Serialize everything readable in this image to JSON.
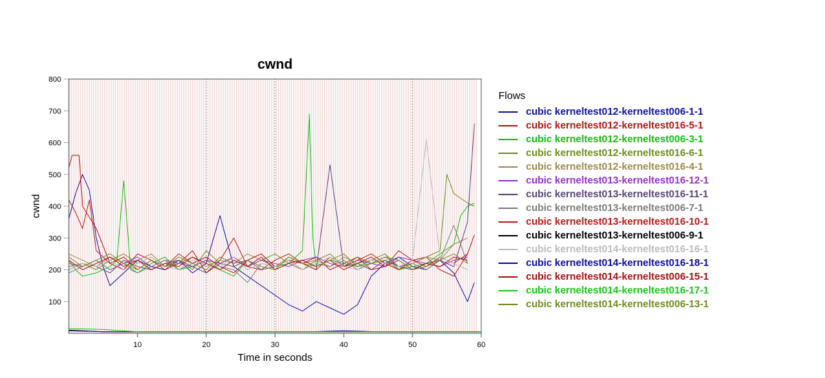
{
  "chart_data": {
    "type": "line",
    "title": "cwnd",
    "xlabel": "Time in seconds",
    "ylabel": "cwnd",
    "xlim": [
      0,
      60
    ],
    "ylim": [
      0,
      800
    ],
    "x_ticks": [
      10,
      20,
      30,
      40,
      50,
      60
    ],
    "y_ticks": [
      100,
      200,
      300,
      400,
      500,
      600,
      700,
      800
    ],
    "grid": "vertical dotted at 20, 30, 50; y tick marks",
    "legend_title": "Flows",
    "legend_position": "right",
    "background_band": {
      "color": "#eac8c8",
      "description": "dense vertical markers throughout the plot"
    },
    "series": [
      {
        "name": "cubic kerneltest012-kerneltest006-1-1",
        "color": "#1010a8",
        "x": [
          0,
          1,
          2,
          3,
          4,
          5,
          6,
          8,
          10,
          12,
          14,
          16,
          18,
          20,
          22,
          24,
          26,
          28,
          30,
          32,
          34,
          36,
          38,
          40,
          42,
          44,
          46,
          48,
          50,
          52,
          54,
          56,
          58,
          59
        ],
        "y": [
          360,
          440,
          500,
          450,
          300,
          210,
          150,
          190,
          230,
          210,
          200,
          230,
          190,
          220,
          370,
          210,
          180,
          150,
          120,
          90,
          70,
          100,
          80,
          60,
          90,
          180,
          220,
          240,
          210,
          200,
          230,
          190,
          100,
          160
        ]
      },
      {
        "name": "cubic kerneltest012-kerneltest016-5-1",
        "color": "#b81414",
        "x": [
          0,
          0.5,
          1.5,
          2,
          4,
          6,
          8,
          10,
          12,
          14,
          16,
          18,
          20,
          22,
          24,
          26,
          28,
          30,
          32,
          34,
          36,
          38,
          40,
          42,
          44,
          46,
          48,
          50,
          52,
          54,
          56,
          58,
          59
        ],
        "y": [
          520,
          560,
          560,
          400,
          330,
          220,
          200,
          250,
          230,
          200,
          220,
          260,
          190,
          230,
          300,
          210,
          200,
          230,
          250,
          220,
          240,
          200,
          220,
          240,
          200,
          210,
          260,
          230,
          240,
          200,
          180,
          250,
          310
        ]
      },
      {
        "name": "cubic kerneltest012-kerneltest006-3-1",
        "color": "#10c010",
        "x": [
          0,
          1,
          2,
          4,
          6,
          7,
          8,
          9,
          10,
          12,
          14,
          16,
          18,
          20,
          22,
          24,
          26,
          28,
          30,
          32,
          34,
          35,
          35.5,
          36,
          38,
          40,
          42,
          44,
          46,
          48,
          50,
          52,
          54,
          56,
          57,
          58,
          59
        ],
        "y": [
          230,
          200,
          180,
          190,
          210,
          230,
          480,
          200,
          190,
          220,
          240,
          200,
          210,
          230,
          200,
          180,
          230,
          250,
          210,
          220,
          260,
          690,
          300,
          210,
          230,
          220,
          210,
          230,
          250,
          200,
          210,
          220,
          250,
          280,
          370,
          400,
          410
        ]
      },
      {
        "name": "cubic kerneltest012-kerneltest016-6-1",
        "color": "#6e8c1c",
        "x": [
          0,
          2,
          4,
          6,
          8,
          10,
          12,
          14,
          16,
          18,
          20,
          22,
          24,
          26,
          28,
          30,
          32,
          34,
          36,
          38,
          40,
          42,
          44,
          46,
          48,
          50,
          52,
          54,
          55,
          56,
          58,
          59
        ],
        "y": [
          210,
          220,
          200,
          230,
          250,
          220,
          240,
          210,
          230,
          200,
          260,
          220,
          240,
          210,
          230,
          250,
          220,
          200,
          230,
          250,
          210,
          240,
          220,
          230,
          200,
          220,
          240,
          260,
          500,
          440,
          410,
          400
        ]
      },
      {
        "name": "cubic kerneltest012-kerneltest016-4-1",
        "color": "#9c8a52",
        "x": [
          0,
          2,
          4,
          6,
          8,
          10,
          12,
          14,
          16,
          18,
          20,
          22,
          24,
          26,
          28,
          30,
          32,
          34,
          36,
          38,
          40,
          42,
          44,
          46,
          48,
          50,
          52,
          54,
          56,
          58
        ],
        "y": [
          250,
          230,
          210,
          240,
          220,
          230,
          250,
          210,
          220,
          240,
          210,
          230,
          220,
          250,
          230,
          210,
          240,
          220,
          230,
          210,
          240,
          220,
          230,
          250,
          210,
          220,
          240,
          230,
          280,
          300
        ]
      },
      {
        "name": "cubic kerneltest013-kerneltest016-12-1",
        "color": "#9430c8",
        "x": [
          0,
          2,
          4,
          6,
          8,
          10,
          12,
          14,
          16,
          18,
          20,
          22,
          24,
          26,
          28,
          30,
          32,
          34,
          36,
          38,
          40,
          42,
          44,
          46,
          48,
          50,
          52,
          54,
          56,
          58
        ],
        "y": [
          220,
          210,
          230,
          200,
          220,
          240,
          210,
          230,
          220,
          210,
          230,
          220,
          240,
          210,
          230,
          220,
          210,
          230,
          240,
          220,
          210,
          230,
          220,
          210,
          240,
          230,
          220,
          210,
          230,
          240
        ]
      },
      {
        "name": "cubic kerneltest013-kerneltest016-11-1",
        "color": "#5c4478",
        "x": [
          0,
          2,
          4,
          6,
          8,
          10,
          12,
          14,
          16,
          18,
          20,
          22,
          24,
          26,
          28,
          30,
          32,
          34,
          36,
          38,
          40,
          42,
          44,
          46,
          48,
          50,
          52,
          54,
          56,
          58,
          59
        ],
        "y": [
          200,
          220,
          210,
          190,
          230,
          210,
          200,
          220,
          230,
          210,
          190,
          220,
          210,
          230,
          200,
          210,
          230,
          220,
          200,
          530,
          210,
          220,
          200,
          230,
          210,
          200,
          220,
          230,
          210,
          350,
          660
        ]
      },
      {
        "name": "cubic kerneltest013-kerneltest006-7-1",
        "color": "#7c7c7c",
        "x": [
          0,
          2,
          4,
          6,
          8,
          10,
          12,
          14,
          16,
          18,
          20,
          22,
          24,
          26,
          28,
          30,
          32,
          34,
          36,
          38,
          40,
          42,
          44,
          46,
          48,
          50,
          52,
          54,
          56,
          58
        ],
        "y": [
          190,
          210,
          230,
          200,
          220,
          190,
          210,
          230,
          200,
          220,
          240,
          210,
          200,
          160,
          220,
          210,
          230,
          200,
          220,
          210,
          230,
          200,
          220,
          240,
          210,
          220,
          200,
          230,
          340,
          220
        ]
      },
      {
        "name": "cubic kerneltest013-kerneltest016-10-1",
        "color": "#c01818",
        "x": [
          0,
          1,
          2,
          3,
          4,
          6,
          8,
          10,
          12,
          14,
          16,
          18,
          20,
          22,
          24,
          26,
          28,
          30,
          32,
          34,
          36,
          38,
          40,
          42,
          44,
          46,
          48,
          50,
          52,
          54,
          56,
          58
        ],
        "y": [
          420,
          380,
          330,
          420,
          260,
          220,
          240,
          200,
          230,
          210,
          250,
          220,
          240,
          210,
          190,
          230,
          250,
          210,
          230,
          220,
          200,
          240,
          210,
          230,
          250,
          220,
          200,
          230,
          210,
          240,
          220,
          250
        ]
      },
      {
        "name": "cubic kerneltest013-kerneltest006-9-1",
        "color": "#000000",
        "x": [
          0,
          5,
          10,
          15,
          20,
          25,
          30,
          35,
          40,
          45,
          50,
          55,
          60
        ],
        "y": [
          10,
          5,
          5,
          5,
          5,
          5,
          5,
          5,
          5,
          5,
          5,
          5,
          5
        ]
      },
      {
        "name": "cubic kerneltest014-kerneltest016-16-1",
        "color": "#bcbcbc",
        "x": [
          0,
          2,
          4,
          6,
          8,
          10,
          12,
          14,
          16,
          18,
          20,
          22,
          24,
          26,
          28,
          30,
          32,
          34,
          36,
          38,
          40,
          42,
          44,
          46,
          48,
          50,
          52,
          54,
          56,
          58
        ],
        "y": [
          200,
          220,
          210,
          230,
          200,
          220,
          240,
          210,
          200,
          230,
          220,
          210,
          240,
          200,
          220,
          210,
          230,
          200,
          220,
          240,
          210,
          200,
          230,
          220,
          210,
          230,
          610,
          240,
          220,
          200
        ]
      },
      {
        "name": "cubic kerneltest014-kerneltest016-18-1",
        "color": "#0c0ca0",
        "x": [
          0,
          5,
          10,
          15,
          20,
          25,
          30,
          35,
          40,
          45,
          50,
          55,
          60
        ],
        "y": [
          8,
          5,
          5,
          5,
          5,
          5,
          5,
          5,
          8,
          5,
          5,
          5,
          5
        ]
      },
      {
        "name": "cubic kerneltest014-kerneltest006-15-1",
        "color": "#a81010",
        "x": [
          0,
          2,
          4,
          6,
          8,
          10,
          12,
          14,
          16,
          18,
          20,
          22,
          24,
          26,
          28,
          30,
          32,
          34,
          36,
          38,
          40,
          42,
          44,
          46,
          48,
          50,
          52,
          54,
          56,
          58
        ],
        "y": [
          230,
          200,
          220,
          240,
          210,
          230,
          200,
          220,
          210,
          240,
          220,
          200,
          230,
          210,
          240,
          200,
          220,
          230,
          210,
          230,
          200,
          220,
          240,
          210,
          230,
          200,
          220,
          210,
          240,
          230
        ]
      },
      {
        "name": "cubic kerneltest014-kerneltest016-17-1",
        "color": "#14c814",
        "x": [
          0,
          5,
          10,
          15,
          20,
          25,
          30,
          35,
          40,
          45,
          50,
          55,
          60
        ],
        "y": [
          15,
          12,
          5,
          5,
          5,
          5,
          5,
          5,
          5,
          5,
          5,
          5,
          5
        ]
      },
      {
        "name": "cubic kerneltest014-kerneltest006-13-1",
        "color": "#728c1e",
        "x": [
          0,
          2,
          4,
          6,
          8,
          10,
          12,
          14,
          16,
          18,
          20,
          22,
          24,
          26,
          28,
          30,
          32,
          34,
          36,
          38,
          40,
          42,
          44,
          46,
          48,
          50,
          52,
          54,
          56,
          58
        ],
        "y": [
          240,
          210,
          230,
          250,
          220,
          200,
          230,
          210,
          240,
          220,
          200,
          240,
          220,
          230,
          210,
          200,
          240,
          220,
          210,
          230,
          250,
          210,
          220,
          240,
          230,
          200,
          210,
          230,
          250,
          220
        ]
      }
    ]
  }
}
